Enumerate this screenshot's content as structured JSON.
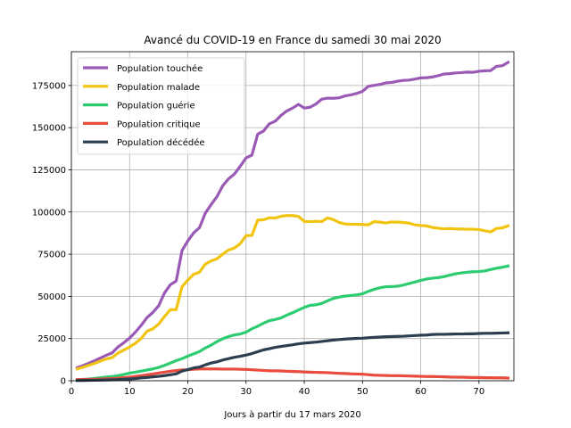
{
  "chart_data": {
    "type": "line",
    "title": "Avancé du COVID-19 en France du samedi 30 mai 2020",
    "xlabel": "Jours à partir du 17 mars 2020",
    "ylabel": "",
    "xlim": [
      0,
      76
    ],
    "ylim": [
      0,
      195000
    ],
    "xticks": [
      0,
      10,
      20,
      30,
      40,
      50,
      60,
      70
    ],
    "yticks": [
      0,
      25000,
      50000,
      75000,
      100000,
      125000,
      150000,
      175000
    ],
    "grid": true,
    "legend_position": "upper-left",
    "x": [
      1,
      2,
      3,
      4,
      5,
      6,
      7,
      8,
      9,
      10,
      11,
      12,
      13,
      14,
      15,
      16,
      17,
      18,
      19,
      20,
      21,
      22,
      23,
      24,
      25,
      26,
      27,
      28,
      29,
      30,
      31,
      32,
      33,
      34,
      35,
      36,
      37,
      38,
      39,
      40,
      41,
      42,
      43,
      44,
      45,
      46,
      47,
      48,
      49,
      50,
      51,
      52,
      53,
      54,
      55,
      56,
      57,
      58,
      59,
      60,
      61,
      62,
      63,
      64,
      65,
      66,
      67,
      68,
      69,
      70,
      71,
      72,
      73,
      74,
      75
    ],
    "series": [
      {
        "name": "Population touchée",
        "color": "#9b59b6",
        "values": [
          7700,
          9000,
          10400,
          11900,
          13500,
          15100,
          16500,
          20000,
          22500,
          25300,
          28800,
          32900,
          37500,
          40500,
          44500,
          52100,
          56900,
          59100,
          77100,
          82900,
          87600,
          90700,
          99300,
          104400,
          109100,
          115600,
          119700,
          122500,
          127100,
          132100,
          133700,
          146100,
          148000,
          152300,
          153800,
          157200,
          159900,
          161600,
          163800,
          161600,
          162100,
          164000,
          166900,
          167500,
          167400,
          167700,
          168800,
          169400,
          170300,
          171500,
          174500,
          175100,
          175600,
          176500,
          176800,
          177500,
          178000,
          178200,
          178800,
          179500,
          179600,
          180000,
          180800,
          181800,
          182000,
          182400,
          182600,
          182900,
          182800,
          183400,
          183700,
          183800,
          186300,
          186700,
          188700
        ]
      },
      {
        "name": "Population malade",
        "color": "#f1c40f",
        "values": [
          7000,
          8000,
          9200,
          10300,
          11700,
          12900,
          13700,
          16400,
          18200,
          20000,
          22200,
          25100,
          29400,
          30800,
          33600,
          38100,
          42100,
          42100,
          55700,
          59600,
          63100,
          64300,
          69100,
          71000,
          72300,
          75000,
          77500,
          78700,
          81200,
          86000,
          86100,
          95200,
          95400,
          96600,
          96400,
          97500,
          97900,
          97900,
          97400,
          94400,
          94300,
          94500,
          94300,
          96500,
          95500,
          93800,
          92900,
          92700,
          92700,
          92600,
          92400,
          94300,
          94000,
          93500,
          94100,
          94000,
          93800,
          93400,
          92400,
          92000,
          91800,
          90800,
          90400,
          90000,
          90200,
          90000,
          89900,
          89800,
          89800,
          89600,
          88900,
          88200,
          90200,
          90600,
          91800
        ]
      },
      {
        "name": "Population guérie",
        "color": "#2ecc71",
        "values": [
          600,
          800,
          1000,
          1400,
          1800,
          2200,
          2500,
          3000,
          3700,
          4500,
          5100,
          5700,
          6400,
          7000,
          7900,
          9100,
          10500,
          11900,
          13100,
          14600,
          15900,
          17300,
          19400,
          21100,
          23200,
          24900,
          26200,
          27100,
          27700,
          28800,
          30800,
          32300,
          34100,
          35600,
          36300,
          37200,
          38900,
          40300,
          41900,
          43500,
          44700,
          45000,
          45800,
          47400,
          48800,
          49600,
          50200,
          50500,
          50900,
          51500,
          53000,
          54200,
          55100,
          55700,
          55800,
          56000,
          56700,
          57600,
          58500,
          59500,
          60300,
          60800,
          61100,
          61700,
          62600,
          63400,
          63900,
          64300,
          64600,
          64700,
          65100,
          65900,
          66700,
          67300,
          68000
        ]
      },
      {
        "name": "Population critique",
        "color": "#e74c3c",
        "values": [
          700,
          750,
          800,
          900,
          1000,
          1200,
          1300,
          1500,
          1800,
          2100,
          2600,
          3000,
          3500,
          4000,
          4600,
          5100,
          5600,
          6000,
          6400,
          6500,
          6800,
          7000,
          7000,
          7000,
          7000,
          6900,
          6900,
          6900,
          6800,
          6700,
          6500,
          6300,
          6100,
          5900,
          5900,
          5800,
          5600,
          5500,
          5400,
          5200,
          5100,
          5000,
          4900,
          4800,
          4600,
          4400,
          4300,
          4100,
          4000,
          3900,
          3600,
          3300,
          3200,
          3100,
          3000,
          3000,
          2900,
          2800,
          2700,
          2600,
          2500,
          2500,
          2400,
          2300,
          2200,
          2100,
          2100,
          2000,
          1900,
          1900,
          1800,
          1800,
          1700,
          1700,
          1600
        ]
      },
      {
        "name": "Population décédée",
        "color": "#2c3e50",
        "values": [
          150,
          200,
          250,
          300,
          400,
          450,
          550,
          650,
          850,
          1050,
          1300,
          1700,
          1950,
          2300,
          2600,
          3050,
          3550,
          4050,
          5700,
          6600,
          7600,
          8100,
          9400,
          10500,
          11200,
          12300,
          13100,
          13900,
          14500,
          15200,
          16100,
          17200,
          18300,
          19000,
          19800,
          20300,
          20800,
          21300,
          21900,
          22300,
          22600,
          22900,
          23300,
          23700,
          24100,
          24400,
          24700,
          24900,
          25100,
          25200,
          25500,
          25700,
          25900,
          26100,
          26200,
          26300,
          26400,
          26600,
          26800,
          27000,
          27100,
          27400,
          27500,
          27500,
          27600,
          27700,
          27700,
          27800,
          27800,
          28000,
          28100,
          28100,
          28200,
          28300,
          28400
        ]
      }
    ]
  }
}
